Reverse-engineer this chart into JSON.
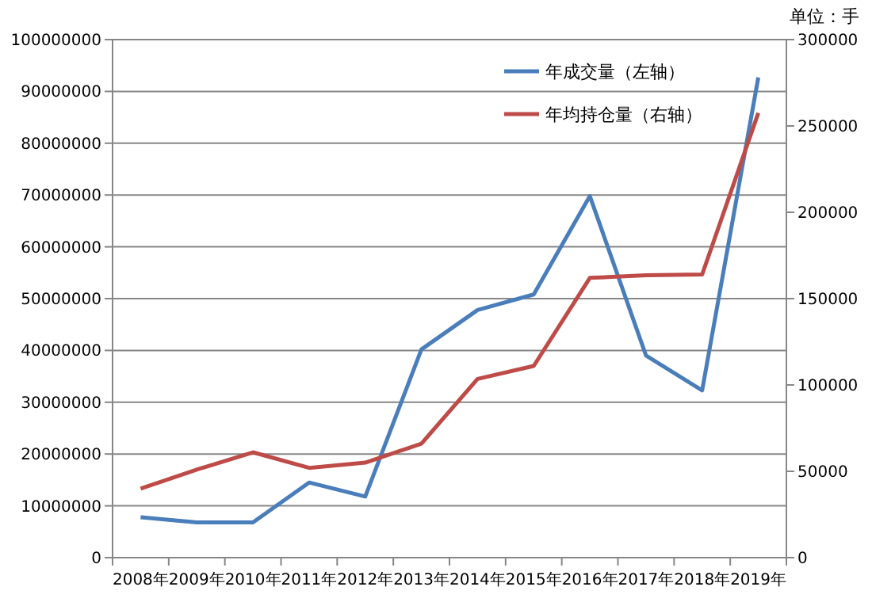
{
  "chart_data": {
    "type": "line",
    "categories": [
      "2008年",
      "2009年",
      "2010年",
      "2011年",
      "2012年",
      "2013年",
      "2014年",
      "2015年",
      "2016年",
      "2017年",
      "2018年",
      "2019年"
    ],
    "series": [
      {
        "name": "年成交量（左轴）",
        "color": "#4a7ebb",
        "values": [
          7800000,
          6800000,
          6800000,
          14500000,
          11800000,
          40200000,
          47800000,
          50800000,
          69800000,
          39000000,
          32300000,
          92700000
        ]
      },
      {
        "name": "年均持仓量（右轴）",
        "color": "#be4b48",
        "axis": "y2",
        "values": [
          40000,
          51000,
          61000,
          52000,
          55000,
          66000,
          103500,
          111000,
          162000,
          163500,
          164000,
          257500
        ]
      }
    ],
    "ylim": [
      0,
      100000000
    ],
    "yticks": [
      0,
      10000000,
      20000000,
      30000000,
      40000000,
      50000000,
      60000000,
      70000000,
      80000000,
      90000000,
      100000000
    ],
    "y2lim": [
      0,
      300000
    ],
    "y2ticks": [
      0,
      50000,
      100000,
      150000,
      200000,
      250000,
      300000
    ],
    "grid": "y",
    "legend": "top right",
    "marker": "none",
    "line_style": "solid",
    "annotations": [
      "单位：手"
    ]
  }
}
